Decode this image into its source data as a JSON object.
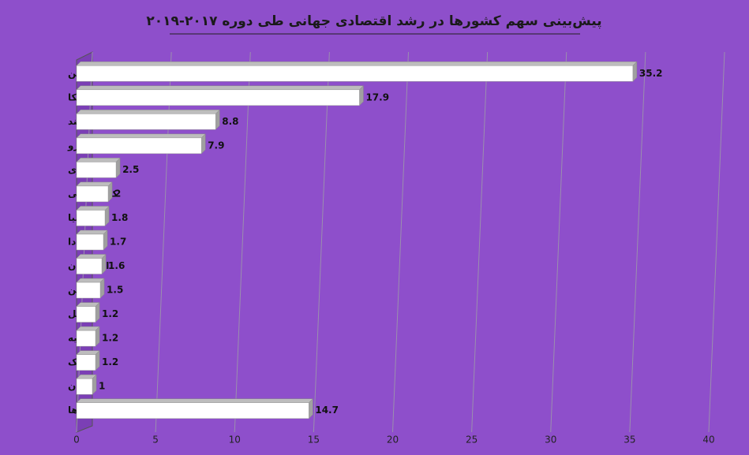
{
  "chart_data": {
    "type": "bar",
    "orientation": "horizontal",
    "title": "پیش‌بینی سهم کشورها در رشد اقتصادی جهانی طی دوره ۲۰۱۷-۲۰۱۹",
    "categories": [
      "چین",
      "آمریکا",
      "هند",
      "منطقه یورو",
      "اندونزی",
      "کره جنوبی",
      "استرالیا",
      "کانادا",
      "انگلستان",
      "ژاپن",
      "برزیل",
      "ترکیه",
      "مکزیک",
      "ایران",
      "سایر کشورها"
    ],
    "values": [
      35.2,
      17.9,
      8.8,
      7.9,
      2.5,
      2,
      1.8,
      1.7,
      1.6,
      1.5,
      1.2,
      1.2,
      1.2,
      1,
      14.7
    ],
    "color": "#ffffff",
    "xlim": [
      0,
      40
    ],
    "xticks": [
      0,
      5,
      10,
      15,
      20,
      25,
      30,
      35,
      40
    ],
    "grid": true
  }
}
